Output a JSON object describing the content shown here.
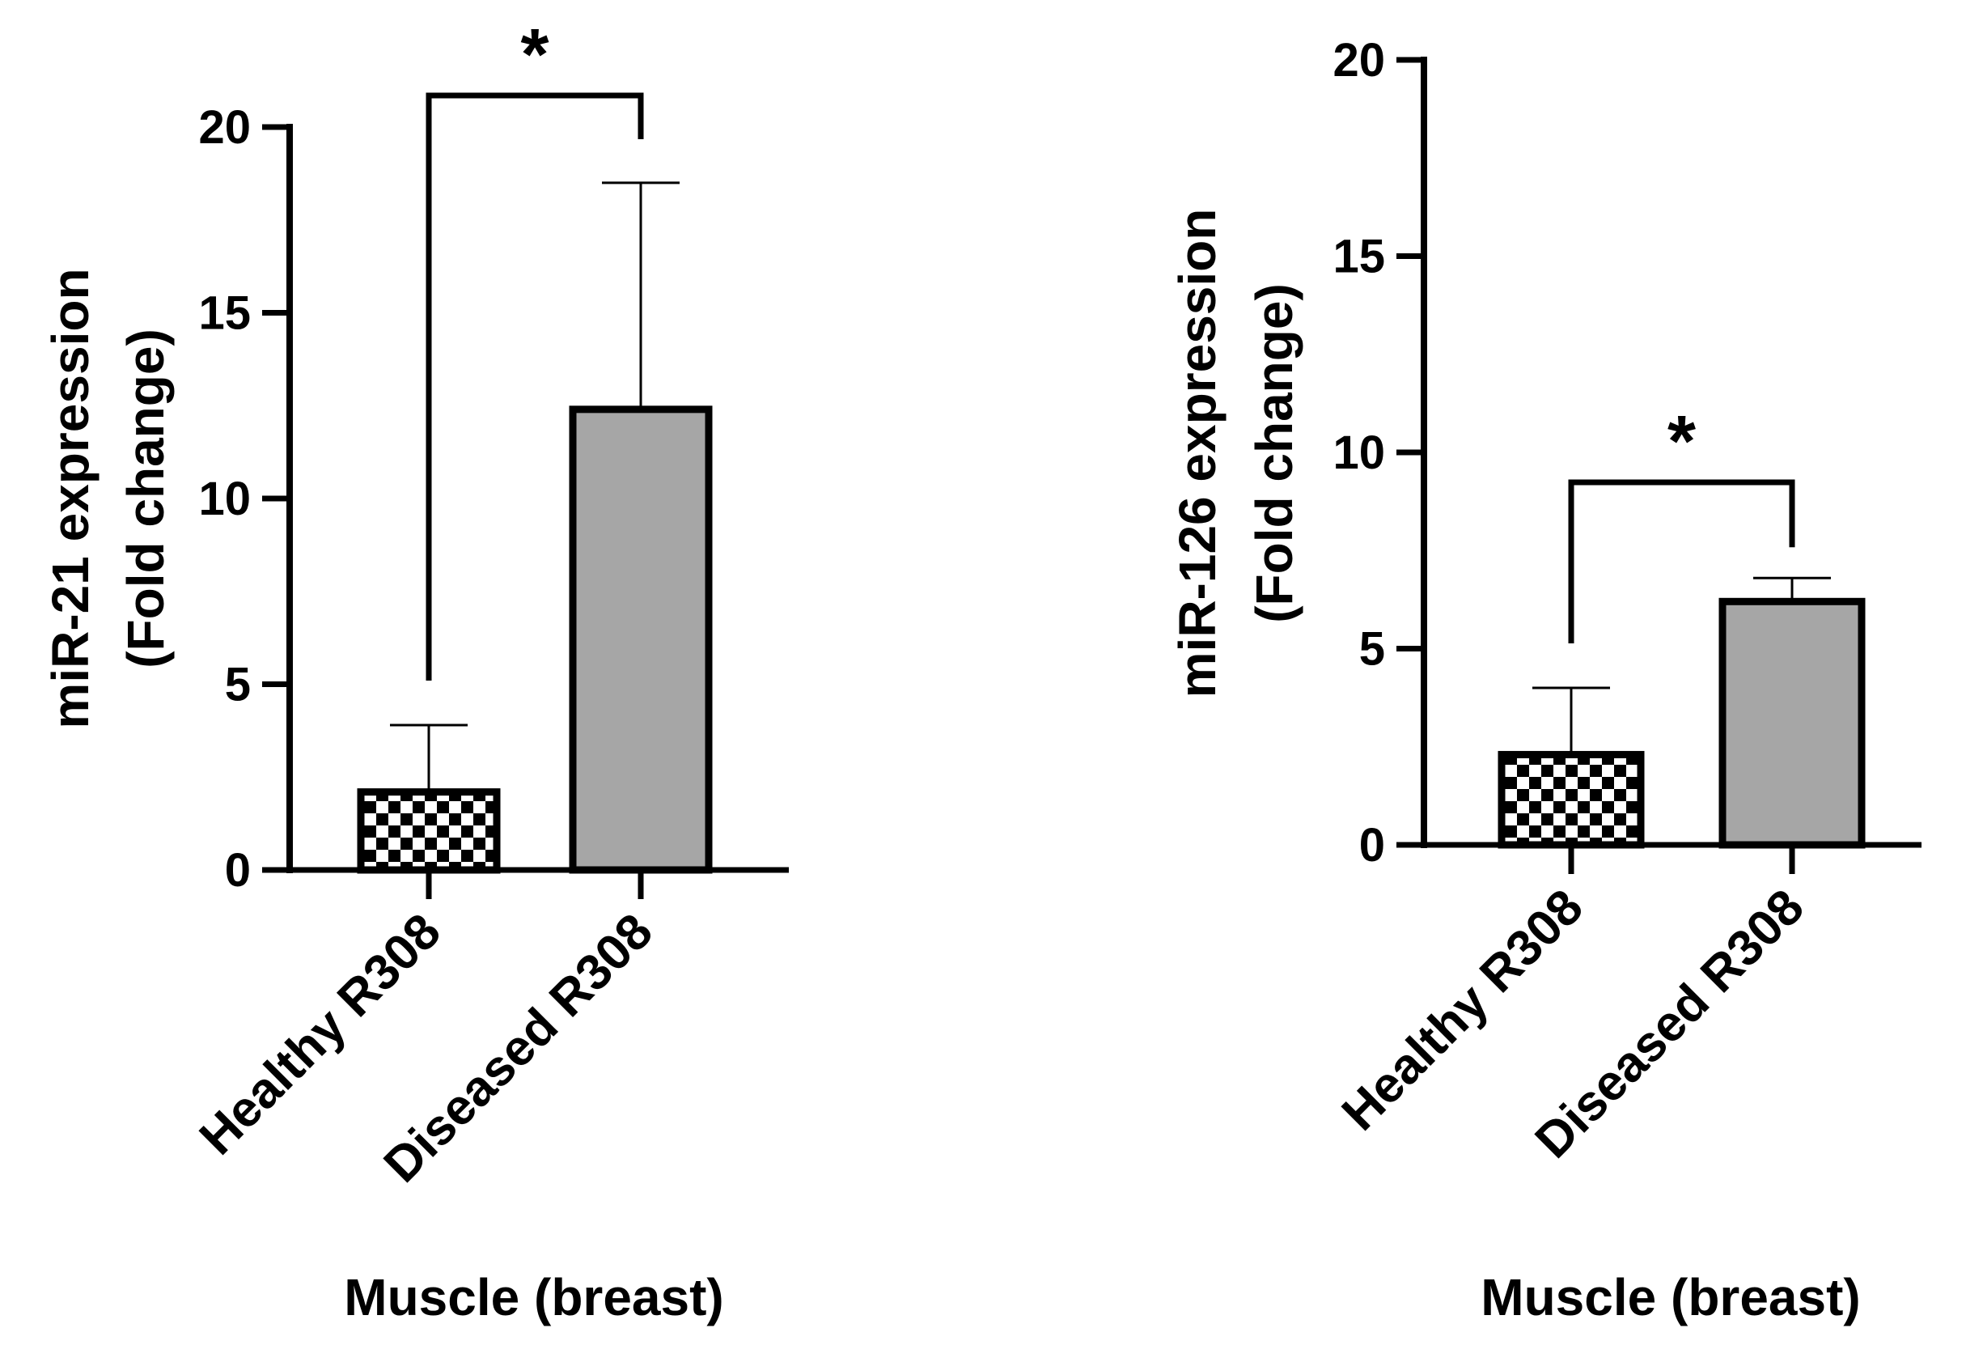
{
  "colors": {
    "axis": "#000000",
    "diseased_fill": "#a6a6a6",
    "healthy_pattern_dark": "#000000",
    "healthy_pattern_light": "#ffffff"
  },
  "chart_data": [
    {
      "type": "bar",
      "categories": [
        "Healthy R308",
        "Diseased R308"
      ],
      "series": [
        {
          "name": "mean",
          "values": [
            2.1,
            12.4
          ]
        },
        {
          "name": "error_upper",
          "values": [
            3.9,
            18.5
          ]
        }
      ],
      "ylabel_line1": "miR-21 expression",
      "ylabel_line2": "(Fold change)",
      "xlabel": "Muscle (breast)",
      "ylim": [
        0,
        20
      ],
      "yticks": [
        0,
        5,
        10,
        15,
        20
      ],
      "significance": {
        "label": "*",
        "between": [
          "Healthy R308",
          "Diseased R308"
        ]
      }
    },
    {
      "type": "bar",
      "categories": [
        "Healthy R308",
        "Diseased R308"
      ],
      "series": [
        {
          "name": "mean",
          "values": [
            2.3,
            6.2
          ]
        },
        {
          "name": "error_upper",
          "values": [
            4.0,
            6.8
          ]
        }
      ],
      "ylabel_line1": "miR-126 expression",
      "ylabel_line2": "(Fold change)",
      "xlabel": "Muscle (breast)",
      "ylim": [
        0,
        20
      ],
      "yticks": [
        0,
        5,
        10,
        15,
        20
      ],
      "significance": {
        "label": "*",
        "between": [
          "Healthy R308",
          "Diseased R308"
        ]
      }
    }
  ]
}
